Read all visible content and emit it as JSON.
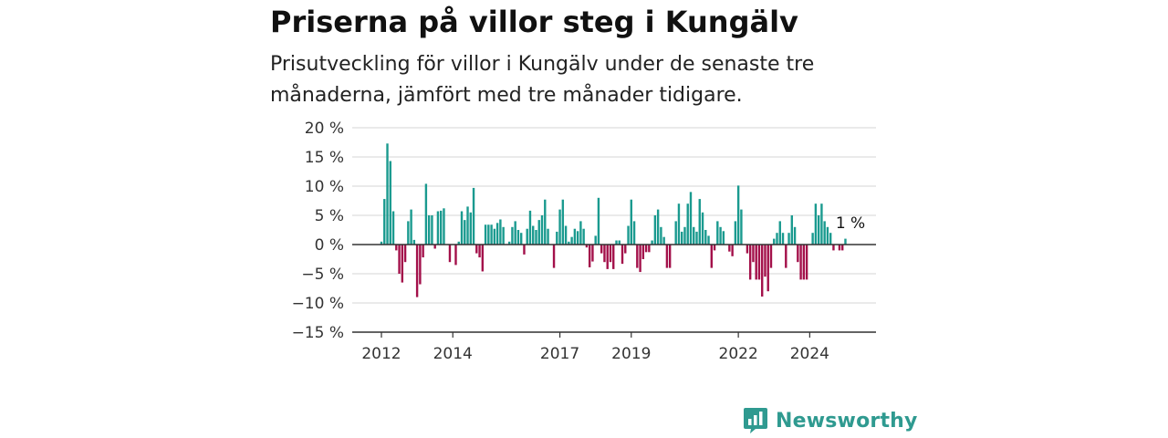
{
  "title": "Priserna på villor steg i Kungälv",
  "subtitle": "Prisutveckling för villor i Kungälv under de senaste tre månaderna, jämfört med tre månader tidigare.",
  "brand": {
    "name": "Newsworthy",
    "icon": "newsworthy-logo-icon"
  },
  "colors": {
    "positive": "#1a9a8f",
    "negative": "#a3104a",
    "grid": "#dddddd",
    "axis": "#333333"
  },
  "chart_data": {
    "type": "bar",
    "x_start": "2012-01",
    "x_end": "2025-03",
    "x_ticks": [
      {
        "label": "2012",
        "date": "2012-01"
      },
      {
        "label": "2014",
        "date": "2014-01"
      },
      {
        "label": "2017",
        "date": "2017-01"
      },
      {
        "label": "2019",
        "date": "2019-01"
      },
      {
        "label": "2022",
        "date": "2022-01"
      },
      {
        "label": "2024",
        "date": "2024-01"
      }
    ],
    "y_ticks": [
      {
        "label": "20 %",
        "value": 20
      },
      {
        "label": "15 %",
        "value": 15
      },
      {
        "label": "10 %",
        "value": 10
      },
      {
        "label": "5 %",
        "value": 5
      },
      {
        "label": "0 %",
        "value": 0
      },
      {
        "label": "−5 %",
        "value": -5
      },
      {
        "label": "−10 %",
        "value": -10
      },
      {
        "label": "−15 %",
        "value": -15
      }
    ],
    "ylim": [
      -15,
      20
    ],
    "grid": true,
    "last_value_label": "1 %",
    "points": [
      {
        "x": "2012-01",
        "y": 0.5
      },
      {
        "x": "2012-02",
        "y": 7.8
      },
      {
        "x": "2012-03",
        "y": 17.3
      },
      {
        "x": "2012-04",
        "y": 14.3
      },
      {
        "x": "2012-05",
        "y": 5.7
      },
      {
        "x": "2012-06",
        "y": -1.0
      },
      {
        "x": "2012-07",
        "y": -5.0
      },
      {
        "x": "2012-08",
        "y": -6.5
      },
      {
        "x": "2012-09",
        "y": -3.0
      },
      {
        "x": "2012-10",
        "y": 4.0
      },
      {
        "x": "2012-11",
        "y": 6.0
      },
      {
        "x": "2012-12",
        "y": 0.8
      },
      {
        "x": "2013-01",
        "y": -9.0
      },
      {
        "x": "2013-02",
        "y": -6.8
      },
      {
        "x": "2013-03",
        "y": -2.2
      },
      {
        "x": "2013-04",
        "y": 10.4
      },
      {
        "x": "2013-05",
        "y": 5.0
      },
      {
        "x": "2013-06",
        "y": 5.0
      },
      {
        "x": "2013-07",
        "y": -0.7
      },
      {
        "x": "2013-08",
        "y": 5.7
      },
      {
        "x": "2013-09",
        "y": 5.8
      },
      {
        "x": "2013-10",
        "y": 6.2
      },
      {
        "x": "2013-11",
        "y": 0
      },
      {
        "x": "2013-12",
        "y": -3.0
      },
      {
        "x": "2014-01",
        "y": 0
      },
      {
        "x": "2014-02",
        "y": -3.5
      },
      {
        "x": "2014-03",
        "y": 0.5
      },
      {
        "x": "2014-04",
        "y": 5.7
      },
      {
        "x": "2014-05",
        "y": 4.2
      },
      {
        "x": "2014-06",
        "y": 6.5
      },
      {
        "x": "2014-07",
        "y": 5.5
      },
      {
        "x": "2014-08",
        "y": 9.7
      },
      {
        "x": "2014-09",
        "y": -1.5
      },
      {
        "x": "2014-10",
        "y": -2.2
      },
      {
        "x": "2014-11",
        "y": -4.6
      },
      {
        "x": "2014-12",
        "y": 3.4
      },
      {
        "x": "2015-01",
        "y": 3.4
      },
      {
        "x": "2015-02",
        "y": 3.4
      },
      {
        "x": "2015-03",
        "y": 2.7
      },
      {
        "x": "2015-04",
        "y": 3.7
      },
      {
        "x": "2015-05",
        "y": 4.3
      },
      {
        "x": "2015-06",
        "y": 3.0
      },
      {
        "x": "2015-07",
        "y": 0
      },
      {
        "x": "2015-08",
        "y": 0.5
      },
      {
        "x": "2015-09",
        "y": 3.0
      },
      {
        "x": "2015-10",
        "y": 4.0
      },
      {
        "x": "2015-11",
        "y": 2.5
      },
      {
        "x": "2015-12",
        "y": 2.0
      },
      {
        "x": "2016-01",
        "y": -1.7
      },
      {
        "x": "2016-02",
        "y": 2.7
      },
      {
        "x": "2016-03",
        "y": 5.8
      },
      {
        "x": "2016-04",
        "y": 3.2
      },
      {
        "x": "2016-05",
        "y": 2.5
      },
      {
        "x": "2016-06",
        "y": 4.2
      },
      {
        "x": "2016-07",
        "y": 5.0
      },
      {
        "x": "2016-08",
        "y": 7.7
      },
      {
        "x": "2016-09",
        "y": 2.7
      },
      {
        "x": "2016-10",
        "y": 0
      },
      {
        "x": "2016-11",
        "y": -4.0
      },
      {
        "x": "2016-12",
        "y": 2.2
      },
      {
        "x": "2017-01",
        "y": 6.0
      },
      {
        "x": "2017-02",
        "y": 7.7
      },
      {
        "x": "2017-03",
        "y": 3.2
      },
      {
        "x": "2017-04",
        "y": 0.5
      },
      {
        "x": "2017-05",
        "y": 1.3
      },
      {
        "x": "2017-06",
        "y": 2.7
      },
      {
        "x": "2017-07",
        "y": 2.3
      },
      {
        "x": "2017-08",
        "y": 4.0
      },
      {
        "x": "2017-09",
        "y": 2.7
      },
      {
        "x": "2017-10",
        "y": -0.5
      },
      {
        "x": "2017-11",
        "y": -3.9
      },
      {
        "x": "2017-12",
        "y": -2.9
      },
      {
        "x": "2018-01",
        "y": 1.5
      },
      {
        "x": "2018-02",
        "y": 8.0
      },
      {
        "x": "2018-03",
        "y": -1.5
      },
      {
        "x": "2018-04",
        "y": -3.0
      },
      {
        "x": "2018-05",
        "y": -4.2
      },
      {
        "x": "2018-06",
        "y": -3.0
      },
      {
        "x": "2018-07",
        "y": -4.2
      },
      {
        "x": "2018-08",
        "y": 0.7
      },
      {
        "x": "2018-09",
        "y": 0.7
      },
      {
        "x": "2018-10",
        "y": -3.3
      },
      {
        "x": "2018-11",
        "y": -1.5
      },
      {
        "x": "2018-12",
        "y": 3.2
      },
      {
        "x": "2019-01",
        "y": 7.7
      },
      {
        "x": "2019-02",
        "y": 4.0
      },
      {
        "x": "2019-03",
        "y": -4.0
      },
      {
        "x": "2019-04",
        "y": -4.7
      },
      {
        "x": "2019-05",
        "y": -2.5
      },
      {
        "x": "2019-06",
        "y": -1.3
      },
      {
        "x": "2019-07",
        "y": -1.3
      },
      {
        "x": "2019-08",
        "y": 0.7
      },
      {
        "x": "2019-09",
        "y": 5.0
      },
      {
        "x": "2019-10",
        "y": 6.0
      },
      {
        "x": "2019-11",
        "y": 3.0
      },
      {
        "x": "2019-12",
        "y": 1.3
      },
      {
        "x": "2020-01",
        "y": -4.0
      },
      {
        "x": "2020-02",
        "y": -4.0
      },
      {
        "x": "2020-03",
        "y": 0
      },
      {
        "x": "2020-04",
        "y": 4.0
      },
      {
        "x": "2020-05",
        "y": 7.0
      },
      {
        "x": "2020-06",
        "y": 2.2
      },
      {
        "x": "2020-07",
        "y": 3.0
      },
      {
        "x": "2020-08",
        "y": 7.0
      },
      {
        "x": "2020-09",
        "y": 9.0
      },
      {
        "x": "2020-10",
        "y": 3.0
      },
      {
        "x": "2020-11",
        "y": 2.2
      },
      {
        "x": "2020-12",
        "y": 7.8
      },
      {
        "x": "2021-01",
        "y": 5.5
      },
      {
        "x": "2021-02",
        "y": 2.5
      },
      {
        "x": "2021-03",
        "y": 1.5
      },
      {
        "x": "2021-04",
        "y": -4.0
      },
      {
        "x": "2021-05",
        "y": -1.0
      },
      {
        "x": "2021-06",
        "y": 4.0
      },
      {
        "x": "2021-07",
        "y": 3.0
      },
      {
        "x": "2021-08",
        "y": 2.3
      },
      {
        "x": "2021-09",
        "y": 0
      },
      {
        "x": "2021-10",
        "y": -1.2
      },
      {
        "x": "2021-11",
        "y": -2.0
      },
      {
        "x": "2021-12",
        "y": 4.0
      },
      {
        "x": "2022-01",
        "y": 10.1
      },
      {
        "x": "2022-02",
        "y": 6.0
      },
      {
        "x": "2022-03",
        "y": 0
      },
      {
        "x": "2022-04",
        "y": -1.5
      },
      {
        "x": "2022-05",
        "y": -6.0
      },
      {
        "x": "2022-06",
        "y": -3.0
      },
      {
        "x": "2022-07",
        "y": -6.0
      },
      {
        "x": "2022-08",
        "y": -6.0
      },
      {
        "x": "2022-09",
        "y": -8.9
      },
      {
        "x": "2022-10",
        "y": -5.5
      },
      {
        "x": "2022-11",
        "y": -8.0
      },
      {
        "x": "2022-12",
        "y": -4.0
      },
      {
        "x": "2023-01",
        "y": 1.0
      },
      {
        "x": "2023-02",
        "y": 2.0
      },
      {
        "x": "2023-03",
        "y": 4.0
      },
      {
        "x": "2023-04",
        "y": 2.0
      },
      {
        "x": "2023-05",
        "y": -4.0
      },
      {
        "x": "2023-06",
        "y": 2.0
      },
      {
        "x": "2023-07",
        "y": 5.0
      },
      {
        "x": "2023-08",
        "y": 3.0
      },
      {
        "x": "2023-09",
        "y": -3.0
      },
      {
        "x": "2023-10",
        "y": -6.0
      },
      {
        "x": "2023-11",
        "y": -6.0
      },
      {
        "x": "2023-12",
        "y": -6.0
      },
      {
        "x": "2024-01",
        "y": 0
      },
      {
        "x": "2024-02",
        "y": 2.0
      },
      {
        "x": "2024-03",
        "y": 7.0
      },
      {
        "x": "2024-04",
        "y": 5.0
      },
      {
        "x": "2024-05",
        "y": 7.0
      },
      {
        "x": "2024-06",
        "y": 4.0
      },
      {
        "x": "2024-07",
        "y": 3.0
      },
      {
        "x": "2024-08",
        "y": 2.0
      },
      {
        "x": "2024-09",
        "y": -1.0
      },
      {
        "x": "2024-10",
        "y": 0
      },
      {
        "x": "2024-11",
        "y": -1.0
      },
      {
        "x": "2024-12",
        "y": -1.0
      },
      {
        "x": "2025-01",
        "y": 1.0
      }
    ]
  }
}
